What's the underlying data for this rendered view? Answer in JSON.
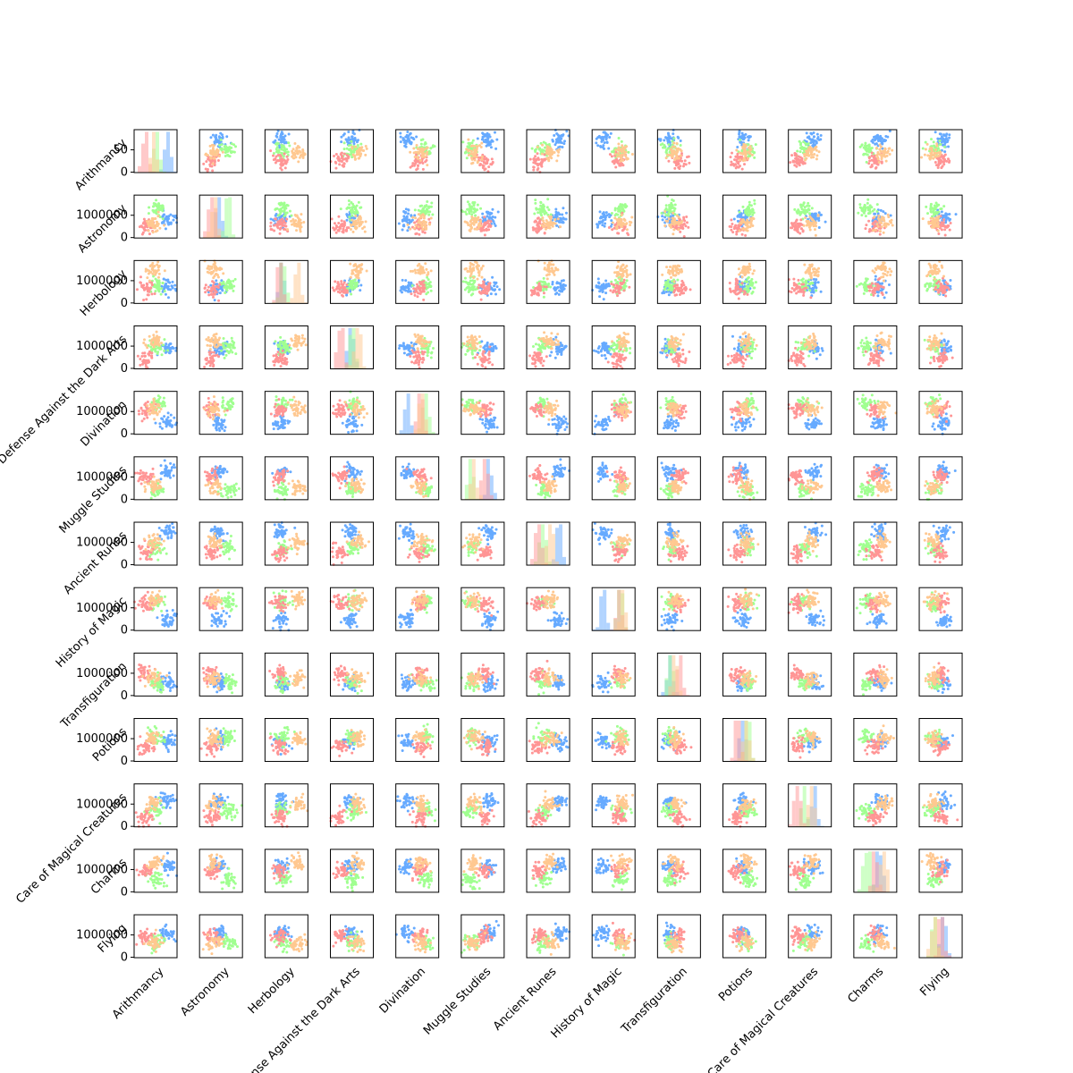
{
  "chart_data": {
    "type": "scatter-matrix",
    "title": "",
    "subjects": [
      "Arithmancy",
      "Astronomy",
      "Herbology",
      "Defense Against the Dark Arts",
      "Divination",
      "Muggle Studies",
      "Ancient Runes",
      "History of Magic",
      "Transfiguration",
      "Potions",
      "Care of Magical Creatures",
      "Charms",
      "Flying"
    ],
    "series_colors": [
      "#ff9595",
      "#66aaff",
      "#a0ff90",
      "#ffc890"
    ],
    "row_tick_labels": [
      [
        "0",
        "50"
      ],
      [
        "0",
        "1000000"
      ],
      [
        "0",
        "1000000"
      ],
      [
        "0",
        "1000000"
      ],
      [
        "0",
        "1000000"
      ],
      [
        "0",
        "1000000"
      ],
      [
        "0",
        "1000000"
      ],
      [
        "0",
        "1000000"
      ],
      [
        "0",
        "1000000"
      ],
      [
        "0",
        "1000000"
      ],
      [
        "0",
        "1000000"
      ],
      [
        "0",
        "1000000"
      ],
      [
        "0",
        "1000000"
      ]
    ],
    "diagonal": "histogram",
    "off_diagonal": "scatter",
    "grid": false,
    "legend": "none"
  }
}
